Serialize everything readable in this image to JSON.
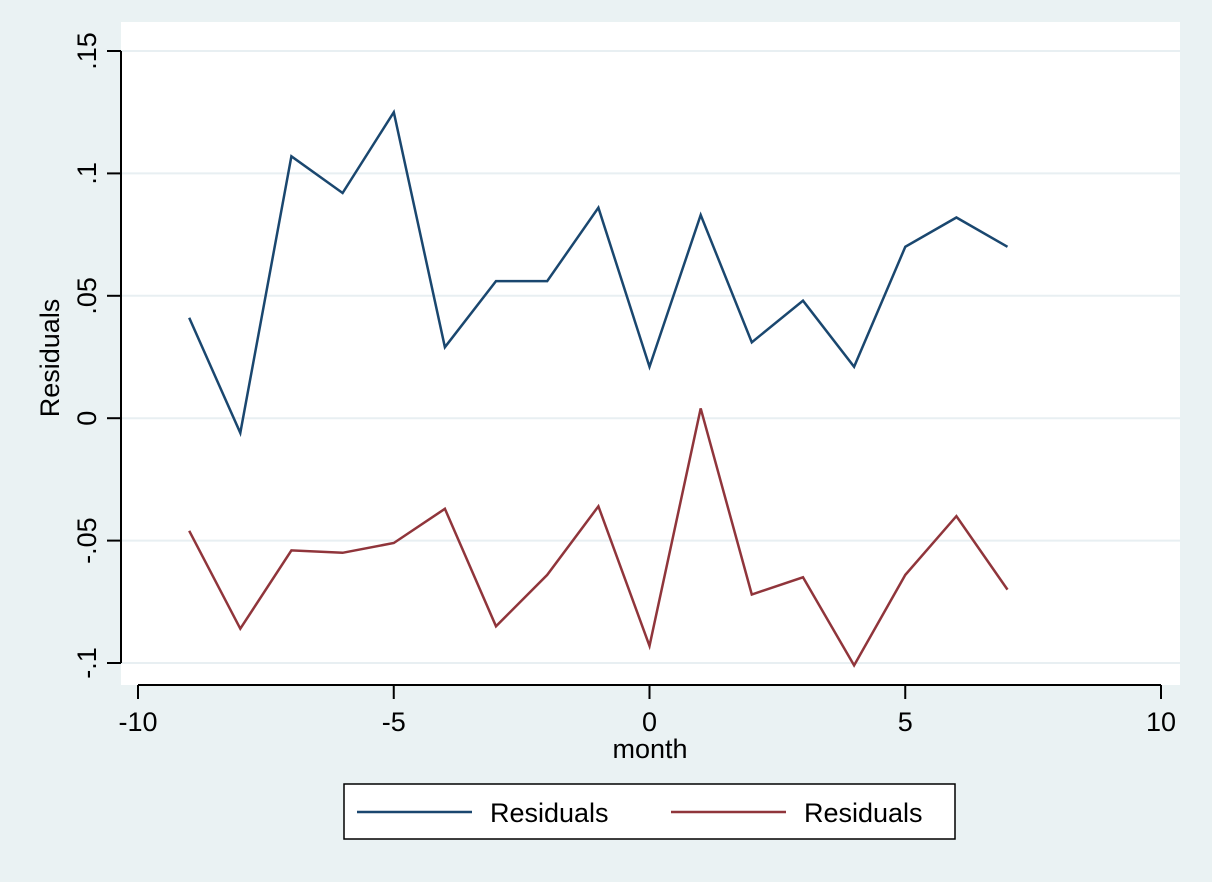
{
  "chart_data": {
    "type": "line",
    "xlabel": "month",
    "ylabel": "Residuals",
    "xlim": [
      -10,
      10
    ],
    "ylim": [
      -0.1,
      0.15
    ],
    "xticks": [
      -10,
      -5,
      0,
      5,
      10
    ],
    "xtick_labels": [
      "-10",
      "-5",
      "0",
      "5",
      "10"
    ],
    "yticks": [
      -0.1,
      -0.05,
      0,
      0.05,
      0.1,
      0.15
    ],
    "ytick_labels": [
      "-.1",
      "-.05",
      "0",
      ".05",
      ".1",
      ".15"
    ],
    "grid": true,
    "legend_position": "bottom",
    "x": [
      -9,
      -8,
      -7,
      -6,
      -5,
      -4,
      -3,
      -2,
      -1,
      0,
      1,
      2,
      3,
      4,
      5,
      6,
      7
    ],
    "series": [
      {
        "name": "Residuals",
        "color": "#1a476f",
        "values": [
          0.041,
          -0.006,
          0.107,
          0.092,
          0.125,
          0.029,
          0.056,
          0.056,
          0.086,
          0.021,
          0.083,
          0.031,
          0.048,
          0.021,
          0.07,
          0.082,
          0.07
        ]
      },
      {
        "name": "Residuals",
        "color": "#90353b",
        "values": [
          -0.046,
          -0.086,
          -0.054,
          -0.055,
          -0.051,
          -0.037,
          -0.085,
          -0.064,
          -0.036,
          -0.093,
          0.004,
          -0.072,
          -0.065,
          -0.101,
          -0.064,
          -0.04,
          -0.07
        ]
      }
    ]
  }
}
